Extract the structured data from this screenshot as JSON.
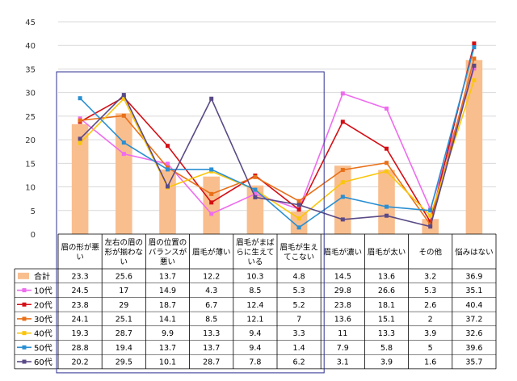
{
  "chart_data": {
    "type": "bar",
    "categories": [
      "眉の形が悪い",
      "左右の眉の形が揃わない",
      "眉の位置のバランスが悪い",
      "眉毛が薄い",
      "眉毛がまばらに生えている",
      "眉毛が生えてこない",
      "眉毛が濃い",
      "眉毛が太い",
      "その他",
      "悩みはない"
    ],
    "category_lines": [
      [
        "眉の形が悪",
        "い"
      ],
      [
        "左右の眉の",
        "形が揃わな",
        "い"
      ],
      [
        "眉の位置の",
        "バランスが",
        "悪い"
      ],
      [
        "眉毛が薄い"
      ],
      [
        "眉毛がまば",
        "らに生えて",
        "いる"
      ],
      [
        "眉毛が生え",
        "てこない"
      ],
      [
        "眉毛が濃い"
      ],
      [
        "眉毛が太い"
      ],
      [
        "その他"
      ],
      [
        "悩みはない"
      ]
    ],
    "ylim": [
      0,
      45
    ],
    "yticks": [
      "0",
      "5",
      "10",
      "15",
      "20",
      "25",
      "30",
      "35",
      "40",
      "45"
    ],
    "grid": true,
    "series": [
      {
        "name": "合計",
        "kind": "bar",
        "color": "#F9BE8E",
        "values": [
          23.3,
          25.6,
          13.7,
          12.2,
          10.3,
          4.8,
          14.5,
          13.6,
          3.2,
          36.9
        ],
        "labels": [
          "23.3",
          "25.6",
          "13.7",
          "12.2",
          "10.3",
          "4.8",
          "14.5",
          "13.6",
          "3.2",
          "36.9"
        ]
      },
      {
        "name": "10代",
        "kind": "line",
        "color": "#EE6CEE",
        "values": [
          24.5,
          17,
          14.9,
          4.3,
          8.5,
          5.3,
          29.8,
          26.6,
          5.3,
          35.1
        ],
        "labels": [
          "24.5",
          "17",
          "14.9",
          "4.3",
          "8.5",
          "5.3",
          "29.8",
          "26.6",
          "5.3",
          "35.1"
        ]
      },
      {
        "name": "20代",
        "kind": "line",
        "color": "#D40E14",
        "values": [
          23.8,
          29,
          18.7,
          6.7,
          12.4,
          5.2,
          23.8,
          18.1,
          2.6,
          40.4
        ],
        "labels": [
          "23.8",
          "29",
          "18.7",
          "6.7",
          "12.4",
          "5.2",
          "23.8",
          "18.1",
          "2.6",
          "40.4"
        ]
      },
      {
        "name": "30代",
        "kind": "line",
        "color": "#E87019",
        "values": [
          24.1,
          25.1,
          14.1,
          8.5,
          12.1,
          7,
          13.6,
          15.1,
          2,
          37.2
        ],
        "labels": [
          "24.1",
          "25.1",
          "14.1",
          "8.5",
          "12.1",
          "7",
          "13.6",
          "15.1",
          "2",
          "37.2"
        ]
      },
      {
        "name": "40代",
        "kind": "line",
        "color": "#FAC60C",
        "values": [
          19.3,
          28.7,
          9.9,
          13.3,
          9.4,
          3.3,
          11,
          13.3,
          3.9,
          32.6
        ],
        "labels": [
          "19.3",
          "28.7",
          "9.9",
          "13.3",
          "9.4",
          "3.3",
          "11",
          "13.3",
          "3.9",
          "32.6"
        ]
      },
      {
        "name": "50代",
        "kind": "line",
        "color": "#2A8FD2",
        "values": [
          28.8,
          19.4,
          13.7,
          13.7,
          9.4,
          1.4,
          7.9,
          5.8,
          5,
          39.6
        ],
        "labels": [
          "28.8",
          "19.4",
          "13.7",
          "13.7",
          "9.4",
          "1.4",
          "7.9",
          "5.8",
          "5",
          "39.6"
        ]
      },
      {
        "name": "60代",
        "kind": "line",
        "color": "#5A4A86",
        "values": [
          20.2,
          29.5,
          10.1,
          28.7,
          7.8,
          6.2,
          3.1,
          3.9,
          1.6,
          35.7
        ],
        "labels": [
          "20.2",
          "29.5",
          "10.1",
          "28.7",
          "7.8",
          "6.2",
          "3.1",
          "3.9",
          "1.6",
          "35.7"
        ]
      }
    ],
    "highlight_box_color": "#2E3192"
  }
}
